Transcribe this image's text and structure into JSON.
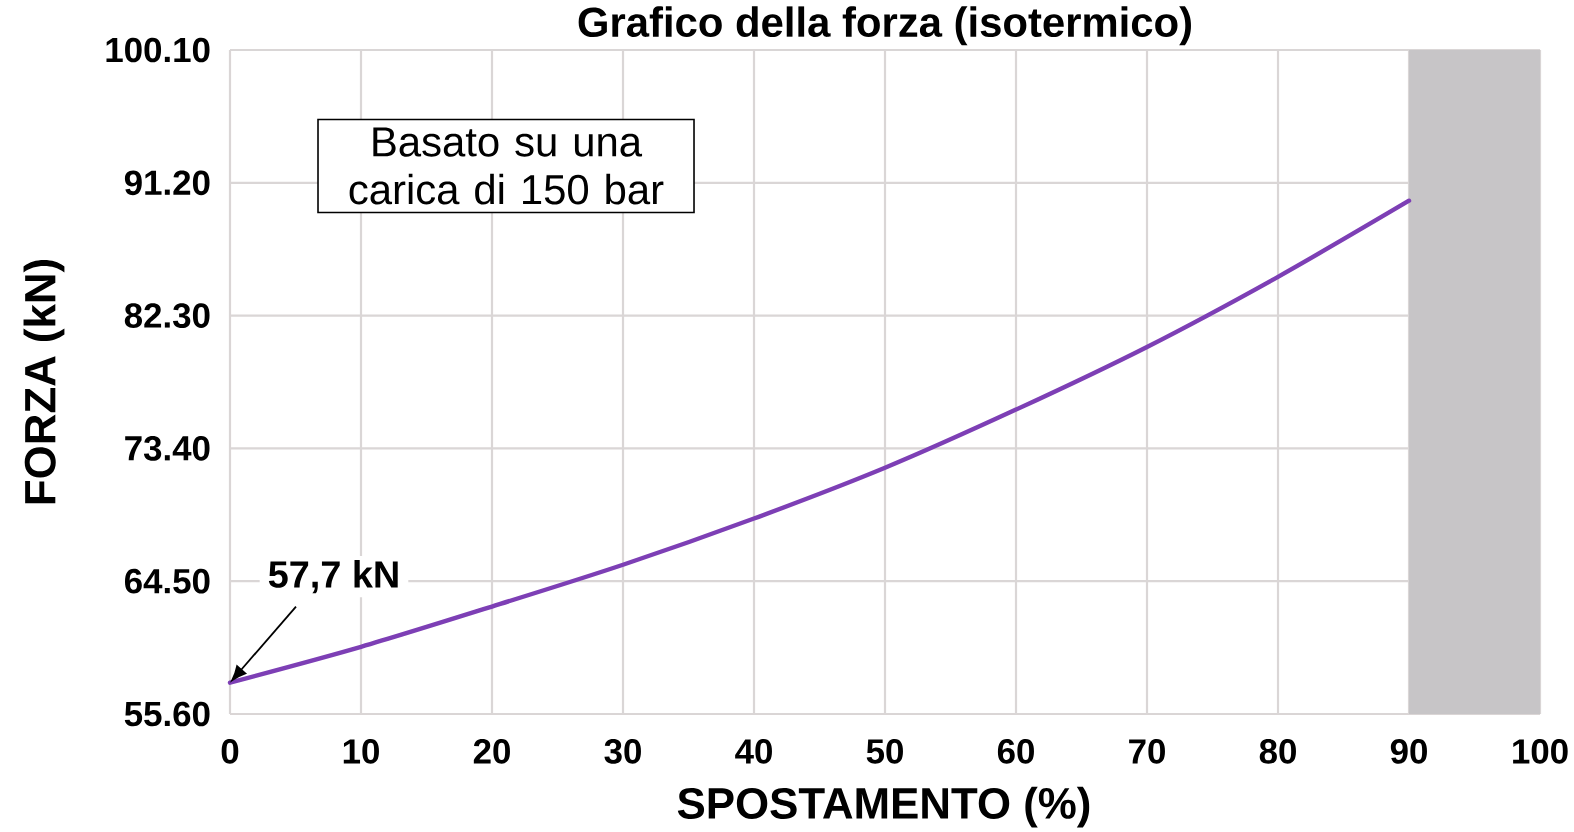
{
  "chart_data": {
    "type": "line",
    "title": "Grafico della forza (isotermico)",
    "xlabel": "SPOSTAMENTO (%)",
    "ylabel": "FORZA (kN)",
    "x": [
      0,
      10,
      20,
      30,
      40,
      50,
      60,
      70,
      80,
      90
    ],
    "values": [
      57.7,
      60.1,
      62.8,
      65.6,
      68.7,
      72.1,
      76.0,
      80.2,
      84.9,
      90.0
    ],
    "color": "#7d3fb5",
    "xlim": [
      0,
      100
    ],
    "ylim": [
      55.6,
      100.1
    ],
    "xticks": [
      0,
      10,
      20,
      30,
      40,
      50,
      60,
      70,
      80,
      90,
      100
    ],
    "yticks": [
      {
        "value": 55.6,
        "label": "55.60"
      },
      {
        "value": 64.5,
        "label": "64.50"
      },
      {
        "value": 73.4,
        "label": "73.40"
      },
      {
        "value": 82.3,
        "label": "82.30"
      },
      {
        "value": 91.2,
        "label": "91.20"
      },
      {
        "value": 100.1,
        "label": "100.10"
      }
    ],
    "grid": true,
    "bands": [
      {
        "axis": "x",
        "from": 90,
        "to": 100,
        "color": "#c7c5c7"
      }
    ],
    "annotations": [
      "Basato su una carica di 150 bar",
      {
        "text": "57,7 kN",
        "x": 0,
        "y": 57.7
      }
    ]
  }
}
